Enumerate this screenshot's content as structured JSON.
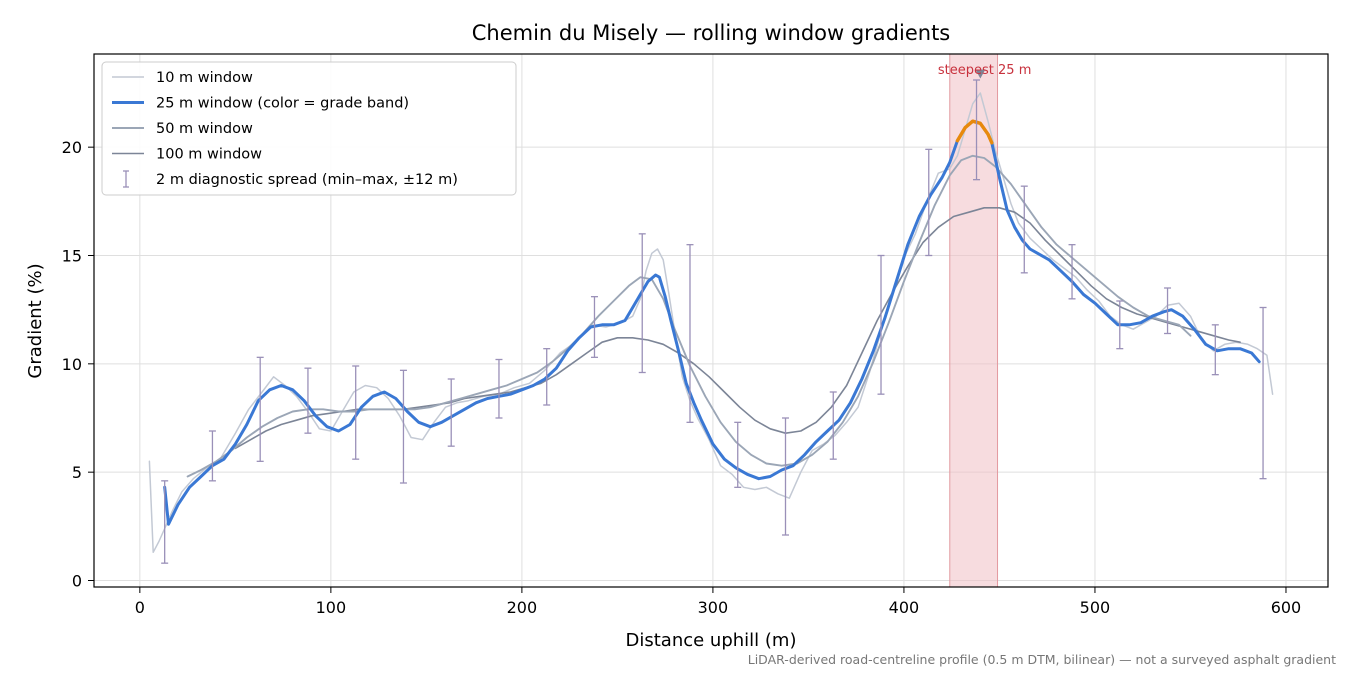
{
  "chart_data": {
    "type": "line",
    "title": "Chemin du Misely — rolling window gradients",
    "xlabel": "Distance uphill (m)",
    "ylabel": "Gradient (%)",
    "xlim": [
      -24,
      622
    ],
    "ylim": [
      -0.3,
      24.3
    ],
    "xticks": [
      0,
      100,
      200,
      300,
      400,
      500,
      600
    ],
    "yticks": [
      0,
      5,
      10,
      15,
      20
    ],
    "grid": true,
    "legend_position": "top-left",
    "colors": {
      "w10": "#c3c9d4",
      "w25": "#3a78d4",
      "w25_steep": "#e8890c",
      "w50": "#9ba6b6",
      "w100": "#7c8597",
      "spread": "#9a90b8",
      "band": "#f0c0c4",
      "band_edge": "#e39aa1",
      "annotation": "#c8323e",
      "note": "#777777"
    },
    "legend": [
      {
        "key": "w10",
        "label": "10 m window"
      },
      {
        "key": "w25",
        "label": "25 m window (color = grade band)"
      },
      {
        "key": "w50",
        "label": "50 m window"
      },
      {
        "key": "w100",
        "label": "100 m window"
      },
      {
        "key": "spread",
        "label": "2 m diagnostic spread (min–max, ±12 m)"
      }
    ],
    "steepest_band": {
      "x_start": 424,
      "x_end": 449,
      "label": "steepest 25 m",
      "marker_x": 440,
      "marker_y": 23.4
    },
    "steep_segment": {
      "x_start": 428,
      "x_end": 446
    },
    "series": [
      {
        "name": "10 m window",
        "key": "w10",
        "x": [
          5,
          7,
          10,
          13,
          17,
          22,
          28,
          35,
          42,
          50,
          57,
          64,
          70,
          76,
          82,
          88,
          94,
          100,
          106,
          112,
          118,
          124,
          130,
          136,
          142,
          148,
          154,
          160,
          166,
          172,
          180,
          188,
          196,
          204,
          212,
          220,
          228,
          236,
          244,
          252,
          258,
          262,
          265,
          268,
          271,
          274,
          277,
          280,
          284,
          288,
          292,
          298,
          304,
          310,
          316,
          322,
          328,
          334,
          340,
          346,
          352,
          358,
          364,
          370,
          376,
          382,
          388,
          394,
          400,
          406,
          412,
          418,
          424,
          428,
          432,
          436,
          440,
          444,
          448,
          452,
          456,
          460,
          466,
          472,
          478,
          484,
          490,
          496,
          502,
          508,
          514,
          520,
          526,
          532,
          538,
          544,
          550,
          556,
          562,
          568,
          574,
          580,
          585,
          590,
          593
        ],
        "y": [
          5.5,
          1.3,
          1.8,
          2.4,
          3.2,
          4.1,
          4.7,
          5.2,
          5.6,
          6.8,
          7.9,
          8.7,
          9.4,
          9.0,
          8.5,
          7.8,
          7.0,
          6.9,
          7.8,
          8.7,
          9.0,
          8.9,
          8.4,
          7.6,
          6.6,
          6.5,
          7.3,
          8.0,
          8.2,
          8.3,
          8.5,
          8.6,
          8.9,
          9.1,
          9.7,
          10.5,
          11.0,
          11.8,
          11.7,
          11.9,
          12.2,
          13.0,
          14.3,
          15.1,
          15.3,
          14.8,
          13.2,
          11.5,
          9.4,
          8.3,
          7.5,
          6.5,
          5.3,
          4.9,
          4.3,
          4.2,
          4.3,
          4.0,
          3.8,
          5.0,
          6.0,
          6.3,
          6.7,
          7.3,
          8.0,
          9.6,
          11.5,
          13.2,
          14.9,
          16.0,
          17.5,
          18.8,
          19.0,
          19.6,
          20.8,
          22.0,
          22.5,
          21.2,
          19.8,
          18.6,
          17.4,
          16.5,
          15.8,
          15.3,
          14.8,
          14.4,
          14.0,
          13.4,
          12.9,
          12.2,
          11.8,
          11.6,
          11.9,
          12.2,
          12.7,
          12.8,
          12.2,
          11.1,
          10.6,
          10.9,
          11.0,
          10.9,
          10.7,
          10.4,
          8.6
        ]
      },
      {
        "name": "25 m window (color = grade band)",
        "key": "w25",
        "x": [
          13,
          15,
          20,
          26,
          32,
          38,
          44,
          50,
          56,
          62,
          68,
          74,
          80,
          86,
          92,
          98,
          104,
          110,
          116,
          122,
          128,
          134,
          140,
          146,
          152,
          158,
          164,
          170,
          176,
          182,
          188,
          194,
          200,
          206,
          212,
          218,
          224,
          230,
          236,
          242,
          248,
          254,
          258,
          262,
          266,
          270,
          272,
          275,
          278,
          282,
          286,
          290,
          294,
          300,
          306,
          312,
          318,
          324,
          330,
          336,
          342,
          348,
          354,
          360,
          366,
          372,
          378,
          384,
          390,
          396,
          402,
          408,
          414,
          420,
          424,
          428,
          432,
          436,
          440,
          444,
          446,
          450,
          454,
          458,
          462,
          466,
          470,
          476,
          482,
          488,
          494,
          500,
          506,
          512,
          518,
          524,
          530,
          536,
          540,
          546,
          552,
          558,
          564,
          570,
          576,
          582,
          586
        ],
        "y": [
          4.3,
          2.6,
          3.5,
          4.3,
          4.8,
          5.3,
          5.6,
          6.3,
          7.2,
          8.3,
          8.8,
          9.0,
          8.8,
          8.3,
          7.6,
          7.1,
          6.9,
          7.2,
          8.0,
          8.5,
          8.7,
          8.4,
          7.8,
          7.3,
          7.1,
          7.3,
          7.6,
          7.9,
          8.2,
          8.4,
          8.5,
          8.6,
          8.8,
          9.0,
          9.3,
          9.8,
          10.6,
          11.2,
          11.7,
          11.8,
          11.8,
          12.0,
          12.6,
          13.2,
          13.8,
          14.1,
          14.0,
          13.1,
          12.0,
          10.6,
          9.1,
          8.2,
          7.4,
          6.3,
          5.6,
          5.2,
          4.9,
          4.7,
          4.8,
          5.1,
          5.3,
          5.8,
          6.4,
          6.9,
          7.4,
          8.2,
          9.3,
          10.6,
          12.1,
          13.8,
          15.5,
          16.8,
          17.8,
          18.6,
          19.3,
          20.3,
          20.9,
          21.2,
          21.1,
          20.6,
          20.2,
          18.6,
          17.1,
          16.3,
          15.7,
          15.3,
          15.1,
          14.8,
          14.3,
          13.8,
          13.2,
          12.8,
          12.3,
          11.8,
          11.8,
          11.9,
          12.2,
          12.4,
          12.5,
          12.2,
          11.6,
          10.9,
          10.6,
          10.7,
          10.7,
          10.5,
          10.1
        ]
      },
      {
        "name": "50 m window",
        "key": "w50",
        "x": [
          25,
          32,
          40,
          48,
          56,
          64,
          72,
          80,
          88,
          96,
          104,
          112,
          120,
          128,
          136,
          144,
          152,
          160,
          168,
          176,
          184,
          192,
          200,
          208,
          216,
          224,
          232,
          240,
          248,
          256,
          262,
          268,
          274,
          280,
          288,
          296,
          304,
          312,
          320,
          328,
          336,
          344,
          352,
          360,
          368,
          376,
          384,
          392,
          400,
          408,
          416,
          424,
          430,
          436,
          442,
          448,
          456,
          464,
          472,
          480,
          488,
          496,
          504,
          512,
          520,
          528,
          536,
          544,
          550
        ],
        "y": [
          4.8,
          5.1,
          5.5,
          6.0,
          6.6,
          7.1,
          7.5,
          7.8,
          7.9,
          7.9,
          7.8,
          7.8,
          7.9,
          7.9,
          7.9,
          7.9,
          8.0,
          8.2,
          8.4,
          8.6,
          8.8,
          9.0,
          9.3,
          9.6,
          10.1,
          10.7,
          11.4,
          12.2,
          12.9,
          13.6,
          14.0,
          13.9,
          13.0,
          11.6,
          9.9,
          8.5,
          7.3,
          6.4,
          5.8,
          5.4,
          5.3,
          5.4,
          5.8,
          6.4,
          7.3,
          8.5,
          10.1,
          11.9,
          13.8,
          15.6,
          17.3,
          18.7,
          19.4,
          19.6,
          19.5,
          19.1,
          18.3,
          17.3,
          16.3,
          15.5,
          14.9,
          14.3,
          13.7,
          13.1,
          12.6,
          12.2,
          12.0,
          11.8,
          11.3
        ]
      },
      {
        "name": "100 m window",
        "key": "w100",
        "x": [
          50,
          58,
          66,
          74,
          82,
          90,
          98,
          106,
          114,
          122,
          130,
          138,
          146,
          154,
          162,
          170,
          178,
          186,
          194,
          202,
          210,
          218,
          226,
          234,
          242,
          250,
          258,
          266,
          274,
          282,
          290,
          298,
          306,
          314,
          322,
          330,
          338,
          346,
          354,
          362,
          370,
          378,
          386,
          394,
          402,
          410,
          418,
          426,
          434,
          442,
          450,
          458,
          466,
          474,
          482,
          490,
          498,
          506,
          514,
          522,
          530,
          538,
          546,
          554,
          562,
          570,
          576
        ],
        "y": [
          6.1,
          6.5,
          6.9,
          7.2,
          7.4,
          7.6,
          7.7,
          7.8,
          7.9,
          7.9,
          7.9,
          7.9,
          8.0,
          8.1,
          8.2,
          8.4,
          8.5,
          8.6,
          8.7,
          8.9,
          9.1,
          9.5,
          10.0,
          10.5,
          11.0,
          11.2,
          11.2,
          11.1,
          10.9,
          10.5,
          10.0,
          9.4,
          8.7,
          8.0,
          7.4,
          7.0,
          6.8,
          6.9,
          7.3,
          8.0,
          9.0,
          10.5,
          12.0,
          13.3,
          14.5,
          15.6,
          16.3,
          16.8,
          17.0,
          17.2,
          17.2,
          17.0,
          16.5,
          15.7,
          15.0,
          14.3,
          13.6,
          13.0,
          12.6,
          12.3,
          12.1,
          11.9,
          11.7,
          11.5,
          11.3,
          11.1,
          11.0
        ]
      }
    ],
    "spread": [
      {
        "x": 13,
        "min": 0.8,
        "max": 4.6
      },
      {
        "x": 38,
        "min": 4.6,
        "max": 6.9
      },
      {
        "x": 63,
        "min": 5.5,
        "max": 10.3
      },
      {
        "x": 88,
        "min": 6.8,
        "max": 9.8
      },
      {
        "x": 113,
        "min": 5.6,
        "max": 9.9
      },
      {
        "x": 138,
        "min": 4.5,
        "max": 9.7
      },
      {
        "x": 163,
        "min": 6.2,
        "max": 9.3
      },
      {
        "x": 188,
        "min": 7.5,
        "max": 10.2
      },
      {
        "x": 213,
        "min": 8.1,
        "max": 10.7
      },
      {
        "x": 238,
        "min": 10.3,
        "max": 13.1
      },
      {
        "x": 263,
        "min": 9.6,
        "max": 16.0
      },
      {
        "x": 288,
        "min": 7.3,
        "max": 15.5
      },
      {
        "x": 313,
        "min": 4.3,
        "max": 7.3
      },
      {
        "x": 338,
        "min": 2.1,
        "max": 7.5
      },
      {
        "x": 363,
        "min": 5.6,
        "max": 8.7
      },
      {
        "x": 388,
        "min": 8.6,
        "max": 15.0
      },
      {
        "x": 413,
        "min": 15.0,
        "max": 19.9
      },
      {
        "x": 438,
        "min": 18.5,
        "max": 23.1
      },
      {
        "x": 463,
        "min": 14.2,
        "max": 18.2
      },
      {
        "x": 488,
        "min": 13.0,
        "max": 15.5
      },
      {
        "x": 513,
        "min": 10.7,
        "max": 12.9
      },
      {
        "x": 538,
        "min": 11.4,
        "max": 13.5
      },
      {
        "x": 563,
        "min": 9.5,
        "max": 11.8
      },
      {
        "x": 588,
        "min": 4.7,
        "max": 12.6
      }
    ],
    "footnote": "LiDAR-derived road-centreline profile (0.5 m DTM, bilinear) — not a surveyed asphalt gradient"
  }
}
